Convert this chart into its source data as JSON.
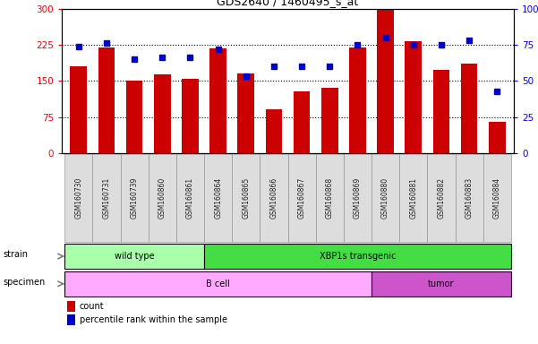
{
  "title": "GDS2640 / 1460495_s_at",
  "samples": [
    "GSM160730",
    "GSM160731",
    "GSM160739",
    "GSM160860",
    "GSM160861",
    "GSM160864",
    "GSM160865",
    "GSM160866",
    "GSM160867",
    "GSM160868",
    "GSM160869",
    "GSM160880",
    "GSM160881",
    "GSM160882",
    "GSM160883",
    "GSM160884"
  ],
  "counts": [
    180,
    220,
    150,
    163,
    155,
    218,
    165,
    90,
    128,
    135,
    220,
    298,
    232,
    172,
    185,
    65
  ],
  "percentiles": [
    74,
    76,
    65,
    66,
    66,
    72,
    53,
    60,
    60,
    60,
    75,
    80,
    75,
    75,
    78,
    43
  ],
  "bar_color": "#cc0000",
  "dot_color": "#0000cc",
  "ylim_left": [
    0,
    300
  ],
  "ylim_right": [
    0,
    100
  ],
  "yticks_left": [
    0,
    75,
    150,
    225,
    300
  ],
  "yticks_right": [
    0,
    25,
    50,
    75,
    100
  ],
  "ytick_labels_right": [
    "0",
    "25",
    "50",
    "75",
    "100%"
  ],
  "ytick_labels_left": [
    "0",
    "75",
    "150",
    "225",
    "300"
  ],
  "strain_groups": [
    {
      "label": "wild type",
      "start": 0,
      "end": 5,
      "color": "#aaffaa"
    },
    {
      "label": "XBP1s transgenic",
      "start": 5,
      "end": 16,
      "color": "#44dd44"
    }
  ],
  "specimen_groups": [
    {
      "label": "B cell",
      "start": 0,
      "end": 11,
      "color": "#ffaaff"
    },
    {
      "label": "tumor",
      "start": 11,
      "end": 16,
      "color": "#cc55cc"
    }
  ],
  "strain_label": "strain",
  "specimen_label": "specimen",
  "legend_count_label": "count",
  "legend_percentile_label": "percentile rank within the sample",
  "tick_bg_color": "#dddddd",
  "bg_color": "#ffffff"
}
